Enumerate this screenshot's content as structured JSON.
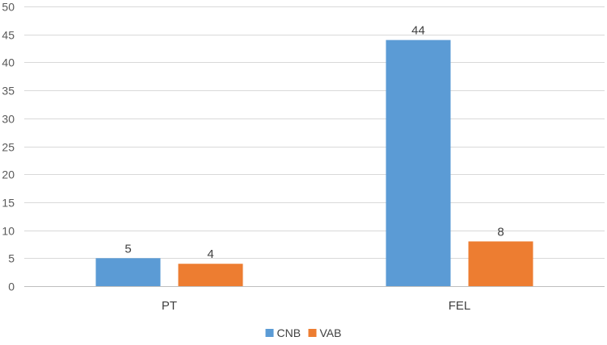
{
  "chart_data": {
    "type": "bar",
    "categories": [
      "PT",
      "FEL"
    ],
    "series": [
      {
        "name": "CNB",
        "values": [
          5,
          44
        ],
        "color": "#5B9BD5"
      },
      {
        "name": "VAB",
        "values": [
          4,
          8
        ],
        "color": "#ED7D31"
      }
    ],
    "ylim": [
      0,
      50
    ],
    "yticks": [
      0,
      5,
      10,
      15,
      20,
      25,
      30,
      35,
      40,
      45,
      50
    ],
    "grid": true,
    "legend_position": "bottom",
    "data_labels": true
  }
}
